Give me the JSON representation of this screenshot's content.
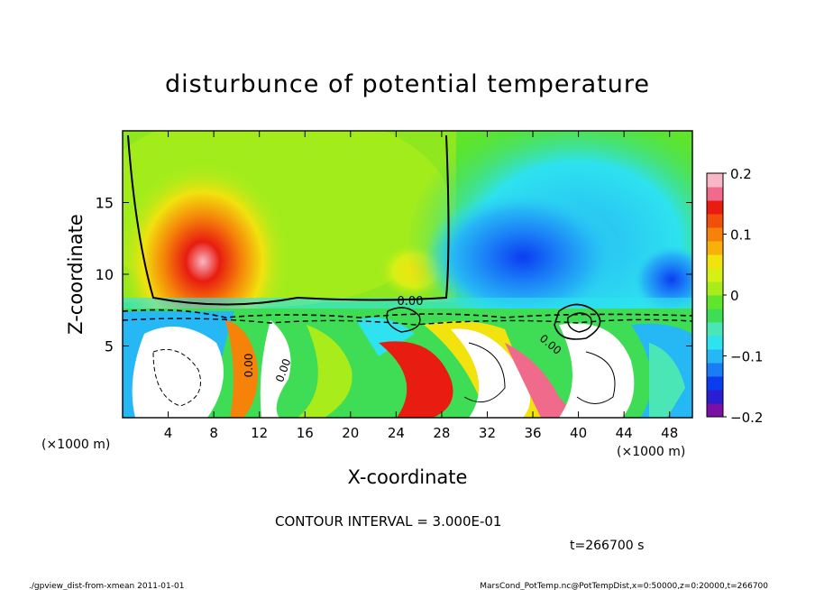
{
  "chart_data": {
    "type": "heatmap",
    "title": "disturbunce of potential temperature",
    "xlabel": "X-coordinate",
    "ylabel": "Z-coordinate",
    "x_unit": "(×1000 m)",
    "y_unit": "(×1000 m)",
    "xlim": [
      0,
      50
    ],
    "ylim": [
      0,
      20
    ],
    "x_ticks": [
      "4",
      "8",
      "12",
      "16",
      "20",
      "24",
      "28",
      "32",
      "36",
      "40",
      "44",
      "48"
    ],
    "y_ticks": [
      "5",
      "10",
      "15"
    ],
    "colorbar": {
      "range": [
        -0.2,
        0.2
      ],
      "tick_labels": [
        "0.2",
        "0.1",
        "0",
        "−0.1",
        "−0.2"
      ],
      "colors": [
        "#7b0fa8",
        "#2a1fd0",
        "#0b3df0",
        "#1a7cf7",
        "#26b7f5",
        "#2ee2ef",
        "#4be6b6",
        "#3fdd55",
        "#5ee52c",
        "#a8ec1c",
        "#d6ef15",
        "#f2e20e",
        "#f7b10a",
        "#f58309",
        "#f24f0a",
        "#e81c10",
        "#f06a8c",
        "#f9b6c6"
      ]
    },
    "annotations": [
      "0.00",
      "0.00",
      "0.00",
      "0.00"
    ],
    "contour_interval_label": "CONTOUR INTERVAL = 3.000E-01",
    "time_label": "t=266700 s"
  },
  "footer": {
    "left": "./gpview_dist-from-xmean  2011-01-01",
    "right": "MarsCond_PotTemp.nc@PotTempDist,x=0:50000,z=0:20000,t=266700"
  }
}
